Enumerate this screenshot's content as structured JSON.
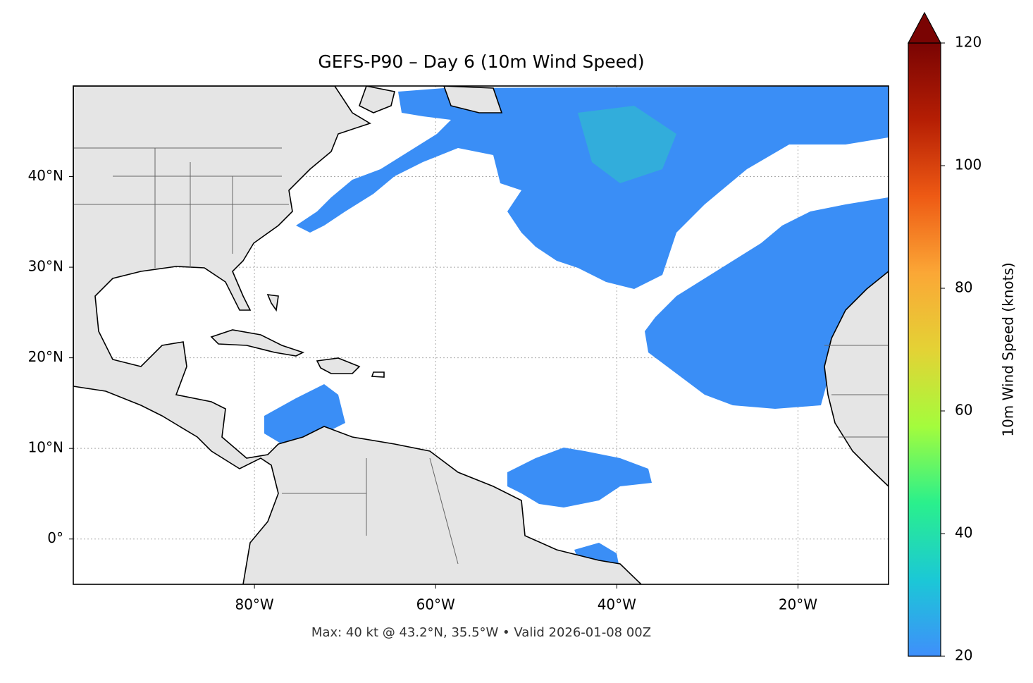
{
  "chart_data": {
    "type": "map",
    "title": "GEFS-P90 – Day 6 (10m Wind Speed)",
    "annotation": "Max: 40 kt @ 43.2°N, 35.5°W • Valid 2026-01-08 00Z",
    "xlim": [
      -100,
      -10
    ],
    "ylim": [
      -5,
      50
    ],
    "xticks": [
      {
        "value": -80,
        "label": "80°W"
      },
      {
        "value": -60,
        "label": "60°W"
      },
      {
        "value": -40,
        "label": "40°W"
      },
      {
        "value": -20,
        "label": "20°W"
      }
    ],
    "yticks": [
      {
        "value": 0,
        "label": "0°"
      },
      {
        "value": 10,
        "label": "10°N"
      },
      {
        "value": 20,
        "label": "20°N"
      },
      {
        "value": 30,
        "label": "30°N"
      },
      {
        "value": 40,
        "label": "40°N"
      }
    ],
    "grid": true,
    "colorbar": {
      "label": "10m Wind Speed (knots)",
      "lim": [
        20,
        120
      ],
      "ticks": [
        20,
        40,
        60,
        80,
        100,
        120
      ],
      "colors": [
        "#3f8ffb",
        "#1bc8d6",
        "#2af08c",
        "#a4fc3c",
        "#e4d235",
        "#fba736",
        "#ee5a14",
        "#b51e04",
        "#7a0403"
      ]
    }
  }
}
